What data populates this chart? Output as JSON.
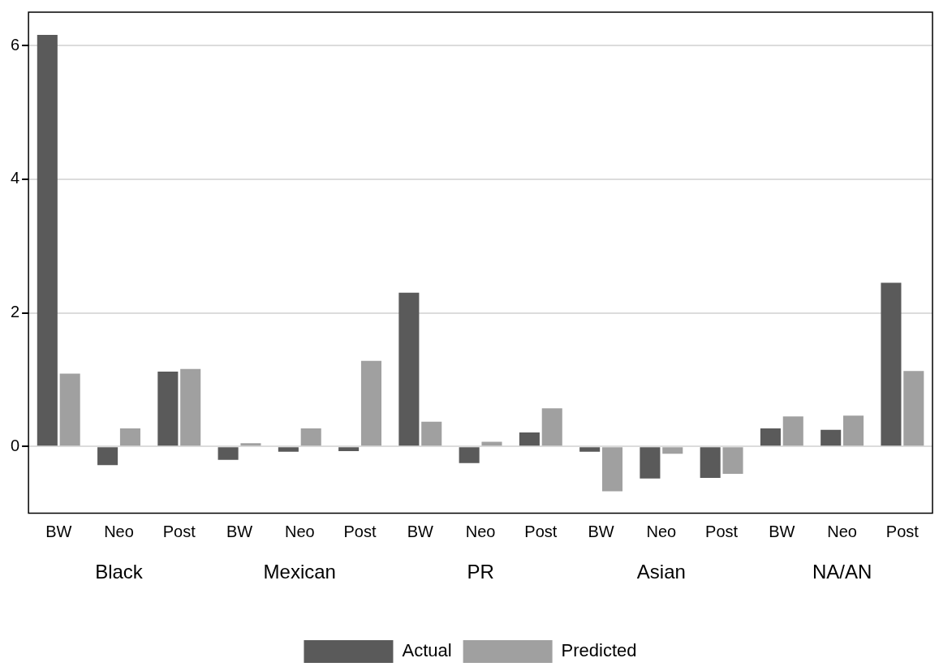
{
  "chart_data": {
    "type": "bar",
    "categories": [
      "BW",
      "Neo",
      "Post",
      "BW",
      "Neo",
      "Post",
      "BW",
      "Neo",
      "Post",
      "BW",
      "Neo",
      "Post",
      "BW",
      "Neo",
      "Post"
    ],
    "series": [
      {
        "name": "Actual",
        "color": "#5a5a5a",
        "values": [
          6.16,
          -0.28,
          1.12,
          -0.2,
          -0.08,
          -0.07,
          2.3,
          -0.25,
          0.21,
          -0.08,
          -0.48,
          -0.47,
          0.27,
          0.25,
          2.45
        ]
      },
      {
        "name": "Predicted",
        "color": "#a0a0a0",
        "values": [
          1.09,
          0.27,
          1.16,
          0.05,
          0.27,
          1.28,
          0.37,
          0.07,
          0.57,
          -0.67,
          -0.11,
          -0.41,
          0.45,
          0.46,
          1.13
        ]
      }
    ],
    "annotations": [
      "Black",
      "Mexican",
      "PR",
      "Asian",
      "NA/AN"
    ],
    "ylim": [
      -1,
      6.5
    ],
    "yticks": [
      0,
      2,
      4,
      6
    ],
    "grid": "y",
    "legend": "bottom"
  }
}
